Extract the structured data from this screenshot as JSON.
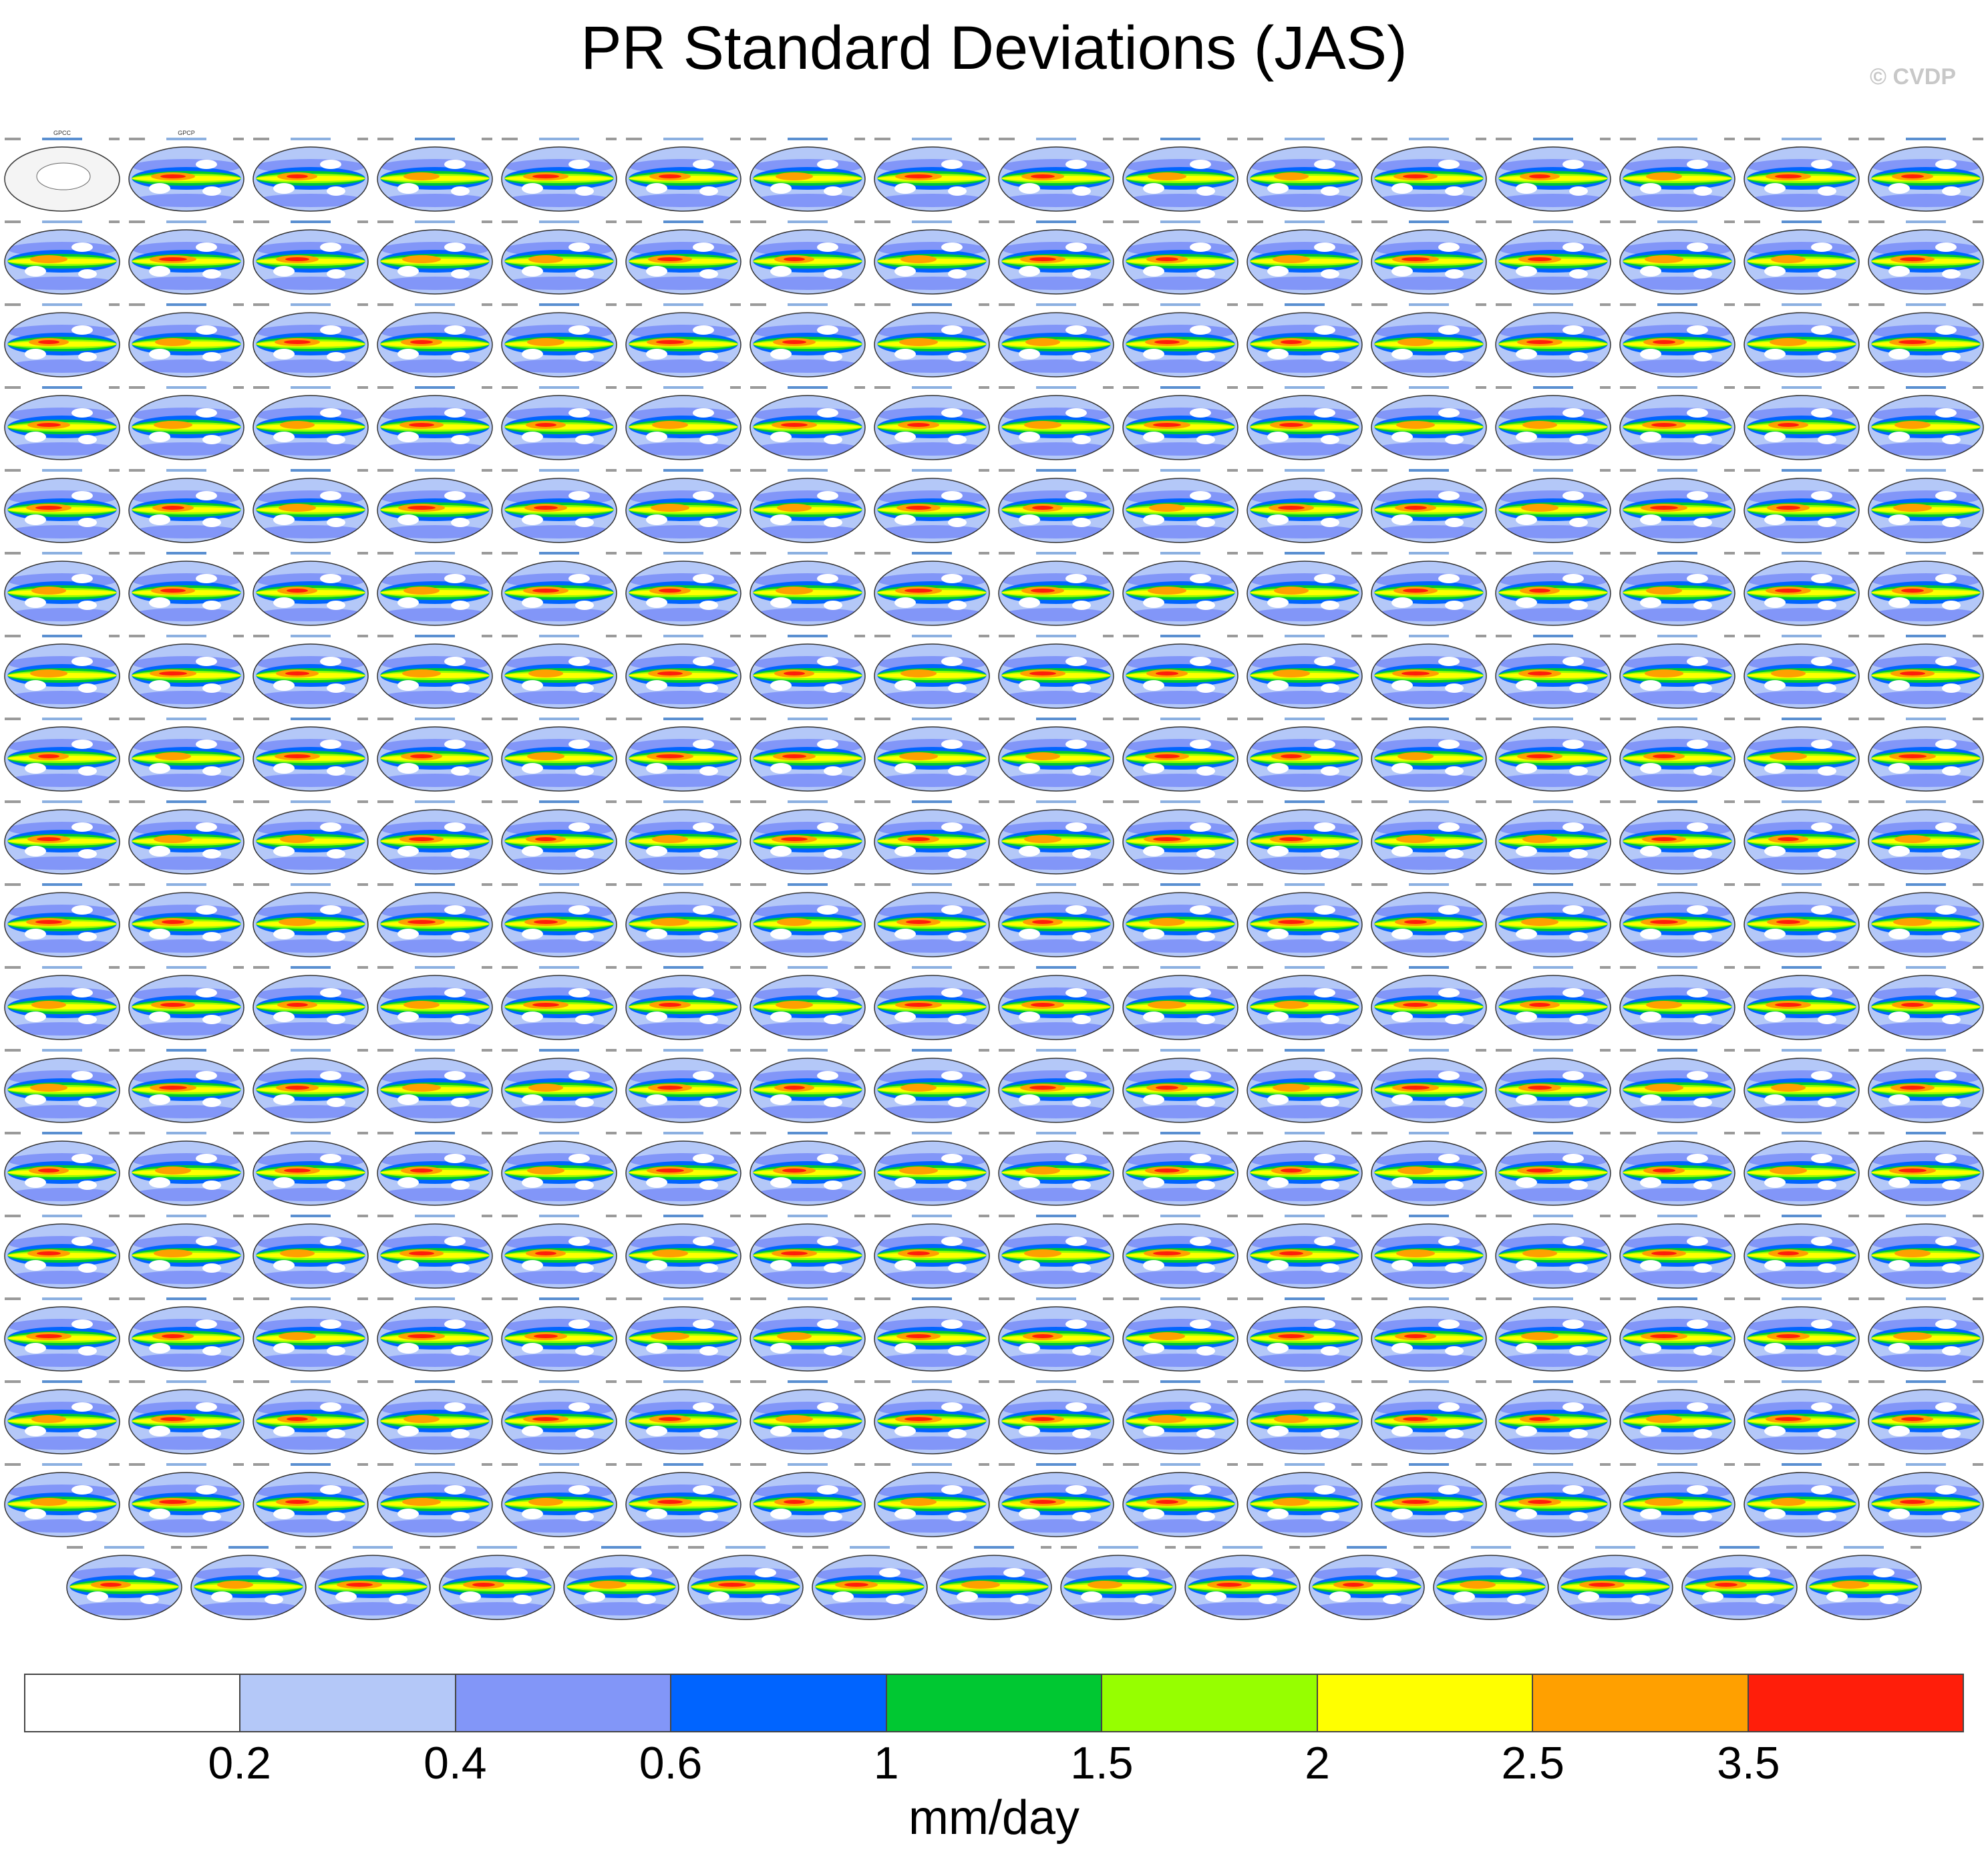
{
  "title": "PR Standard Deviations (JAS)",
  "credit": "© CVDP",
  "chart_data": {
    "type": "heatmap",
    "title": "PR Standard Deviations (JAS)",
    "description_kind": "small-multiple global maps, colored contour bins",
    "columns": 16,
    "full_rows": 17,
    "last_row_count": 15,
    "first_panels": [
      "GPCC",
      "GPCP"
    ],
    "colorbar": {
      "units": "mm/day",
      "ticks": [
        "0.2",
        "0.4",
        "0.6",
        "1",
        "1.5",
        "2",
        "2.5",
        "3.5"
      ],
      "colors": [
        "#ffffff",
        "#b4c8f8",
        "#8296f8",
        "#0064ff",
        "#00c832",
        "#96ff00",
        "#ffff00",
        "#ffa000",
        "#ff1e0a"
      ]
    }
  }
}
